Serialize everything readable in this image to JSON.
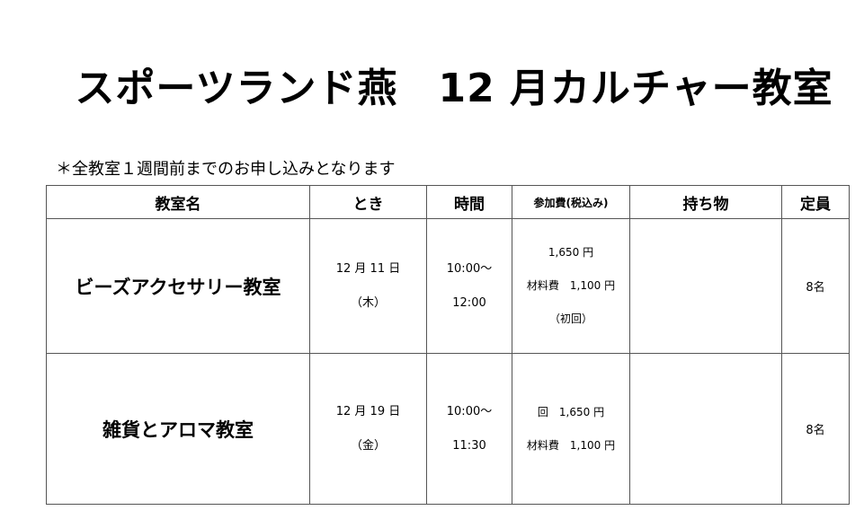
{
  "title": "スポーツランド燕　12 月カルチャー教室",
  "note": "＊全教室１週間前までのお申し込みとなります",
  "table": {
    "headers": [
      "教室名",
      "とき",
      "時間",
      "参加費(税込み)",
      "持ち物",
      "定員"
    ],
    "rows": [
      {
        "name": "ビーズアクセサリー教室",
        "date": [
          "12 月 11 日",
          "（木）"
        ],
        "time": [
          "10:00～",
          "12:00"
        ],
        "fee": [
          "1,650 円",
          "材料費　1,100 円",
          "（初回）"
        ],
        "items": "",
        "capacity": "8名"
      },
      {
        "name": "雑貨とアロマ教室",
        "date": [
          "12 月 19 日",
          "（金）"
        ],
        "time": [
          "10:00～",
          "11:30"
        ],
        "fee": [
          "回　1,650 円",
          "材料費　1,100 円"
        ],
        "items": "",
        "capacity": "8名"
      }
    ]
  }
}
